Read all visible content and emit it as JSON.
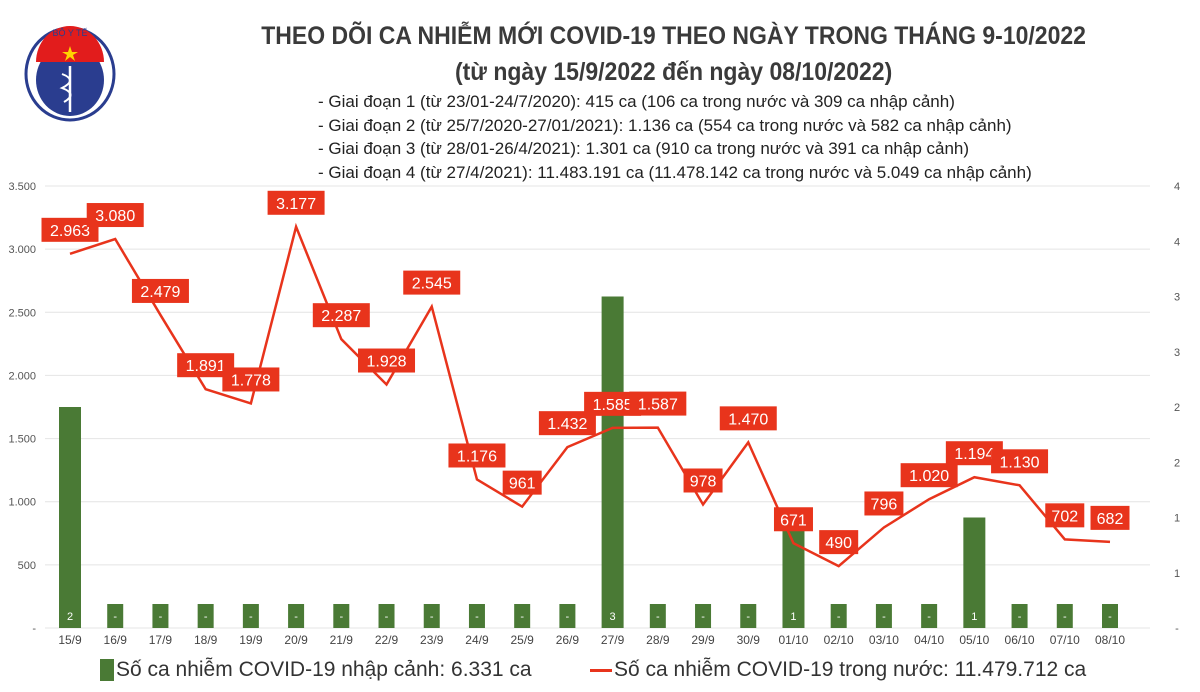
{
  "header": {
    "title": "THEO DÕI CA NHIỄM MỚI COVID-19 THEO NGÀY TRONG THÁNG 9-10/2022",
    "subtitle": "(từ ngày 15/9/2022 đến ngày 08/10/2022)",
    "notes": [
      "- Giai đoạn 1 (từ 23/01-24/7/2020): 415 ca (106 ca trong nước và 309 ca nhập cảnh)",
      "- Giai đoạn 2 (từ 25/7/2020-27/01/2021): 1.136 ca (554 ca trong nước và 582 ca nhập cảnh)",
      "- Giai đoạn 3 (từ 28/01-26/4/2021): 1.301 ca (910 ca trong nước và 391 ca nhập cảnh)",
      "- Giai đoạn 4 (từ 27/4/2021): 11.483.191 ca (11.478.142 ca trong nước và 5.049 ca nhập cảnh)"
    ],
    "logo_text": "BỘ Y TẾ MINISTRY OF HEALTH"
  },
  "chart_data": {
    "type": "bar+line",
    "categories": [
      "15/9",
      "16/9",
      "17/9",
      "18/9",
      "19/9",
      "20/9",
      "21/9",
      "22/9",
      "23/9",
      "24/9",
      "25/9",
      "26/9",
      "27/9",
      "28/9",
      "29/9",
      "30/9",
      "01/10",
      "02/10",
      "03/10",
      "04/10",
      "05/10",
      "06/10",
      "07/10",
      "08/10"
    ],
    "series": [
      {
        "name": "Số ca nhiễm COVID-19 nhập cảnh: 6.331 ca",
        "type": "bar",
        "axis": "right",
        "color": "#4a7a35",
        "values": [
          2,
          0,
          0,
          0,
          0,
          0,
          0,
          0,
          0,
          0,
          0,
          0,
          3,
          0,
          0,
          0,
          1,
          0,
          0,
          0,
          1,
          0,
          0,
          0
        ],
        "labels": [
          "2",
          "-",
          "-",
          "-",
          "-",
          "-",
          "-",
          "-",
          "-",
          "-",
          "-",
          "-",
          "3",
          "-",
          "-",
          "-",
          "1",
          "-",
          "-",
          "-",
          "1",
          "-",
          "-",
          "-"
        ]
      },
      {
        "name": "Số ca nhiễm COVID-19 trong nước: 11.479.712 ca",
        "type": "line",
        "axis": "left",
        "color": "#e8341c",
        "values": [
          2963,
          3080,
          2479,
          1891,
          1778,
          3177,
          2287,
          1928,
          2545,
          1176,
          961,
          1432,
          1585,
          1587,
          978,
          1470,
          671,
          490,
          796,
          1020,
          1194,
          1130,
          702,
          682
        ],
        "labels": [
          "2.963",
          "3.080",
          "2.479",
          "1.891",
          "1.778",
          "3.177",
          "2.287",
          "1.928",
          "2.545",
          "1.176",
          "961",
          "1.432",
          "1.585",
          "1.587",
          "978",
          "1.470",
          "671",
          "490",
          "796",
          "1.020",
          "1.194",
          "1.130",
          "702",
          "682"
        ]
      }
    ],
    "left_axis": {
      "ylim": [
        0,
        3500
      ],
      "ticks": [
        "-",
        "500",
        "1.000",
        "1.500",
        "2.000",
        "2.500",
        "3.000",
        "3.500"
      ]
    },
    "right_axis": {
      "ylim": [
        0,
        4
      ],
      "ticks": [
        "-",
        "1",
        "1",
        "2",
        "2",
        "3",
        "3",
        "4",
        "4"
      ]
    },
    "grid": true,
    "legend_position": "bottom"
  }
}
